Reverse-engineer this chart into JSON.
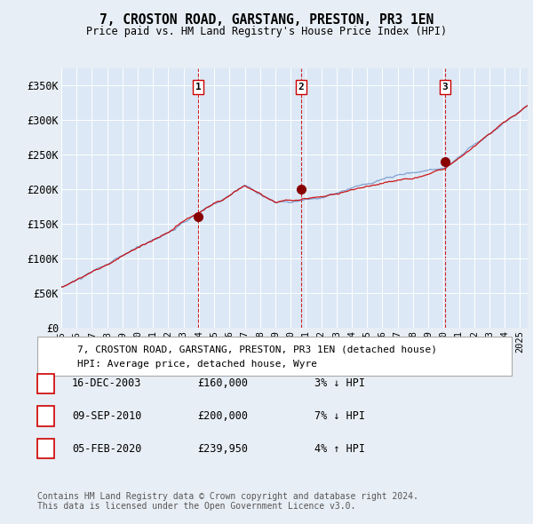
{
  "title": "7, CROSTON ROAD, GARSTANG, PRESTON, PR3 1EN",
  "subtitle": "Price paid vs. HM Land Registry's House Price Index (HPI)",
  "background_color": "#e8eef5",
  "plot_bg_color": "#dce8f5",
  "grid_color": "#c8d8e8",
  "ylim": [
    0,
    375000
  ],
  "yticks": [
    0,
    50000,
    100000,
    150000,
    200000,
    250000,
    300000,
    350000
  ],
  "ytick_labels": [
    "£0",
    "£50K",
    "£100K",
    "£150K",
    "£200K",
    "£250K",
    "£300K",
    "£350K"
  ],
  "sale_date_floats": [
    2003.96,
    2010.69,
    2020.09
  ],
  "sale_prices": [
    160000,
    200000,
    239950
  ],
  "sale_labels": [
    "1",
    "2",
    "3"
  ],
  "legend_line1": "7, CROSTON ROAD, GARSTANG, PRESTON, PR3 1EN (detached house)",
  "legend_line2": "HPI: Average price, detached house, Wyre",
  "table_data": [
    [
      "1",
      "16-DEC-2003",
      "£160,000",
      "3% ↓ HPI"
    ],
    [
      "2",
      "09-SEP-2010",
      "£200,000",
      "7% ↓ HPI"
    ],
    [
      "3",
      "05-FEB-2020",
      "£239,950",
      "4% ↑ HPI"
    ]
  ],
  "footer": "Contains HM Land Registry data © Crown copyright and database right 2024.\nThis data is licensed under the Open Government Licence v3.0.",
  "hpi_line_color": "#7799cc",
  "price_line_color": "#cc0000",
  "sale_marker_color": "#880000",
  "vline_color": "#cc0000"
}
